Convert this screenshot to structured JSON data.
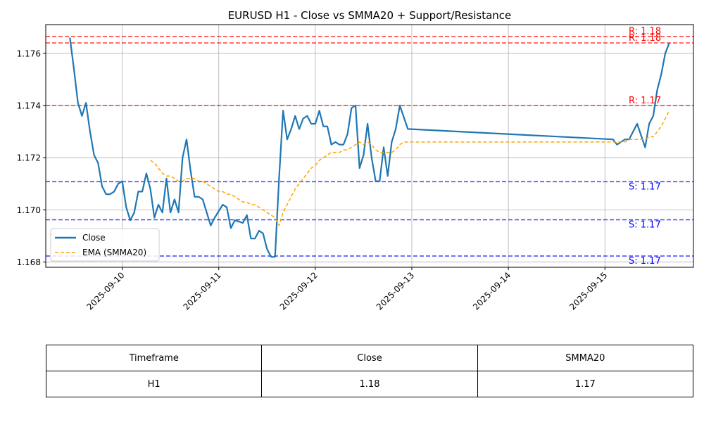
{
  "chart_data": {
    "type": "line",
    "title": "EURUSD H1 - Close vs SMMA20 + Support/Resistance",
    "xlabel": "",
    "ylabel": "",
    "x_range": [
      "2025-09-09 05:00",
      "2025-09-15 22:00"
    ],
    "ylim": [
      1.1678,
      1.1771
    ],
    "x_ticks": [
      "2025-09-10",
      "2025-09-11",
      "2025-09-12",
      "2025-09-13",
      "2025-09-14",
      "2025-09-15"
    ],
    "y_ticks": [
      "1.168",
      "1.170",
      "1.172",
      "1.174",
      "1.176"
    ],
    "grid": true,
    "legend_position": "lower-left",
    "colors": {
      "close": "#1f77b4",
      "smma": "#ffa500",
      "resistance": "#ff0000",
      "support": "#0000ff"
    },
    "series": [
      {
        "name": "Close",
        "style": "solid",
        "points": [
          [
            "2025-09-09 11:00",
            1.1766
          ],
          [
            "2025-09-09 12:00",
            1.1754
          ],
          [
            "2025-09-09 13:00",
            1.1741
          ],
          [
            "2025-09-09 14:00",
            1.1736
          ],
          [
            "2025-09-09 15:00",
            1.1741
          ],
          [
            "2025-09-09 16:00",
            1.173
          ],
          [
            "2025-09-09 17:00",
            1.1721
          ],
          [
            "2025-09-09 18:00",
            1.1718
          ],
          [
            "2025-09-09 19:00",
            1.1709
          ],
          [
            "2025-09-09 20:00",
            1.1706
          ],
          [
            "2025-09-09 21:00",
            1.1706
          ],
          [
            "2025-09-09 22:00",
            1.1707
          ],
          [
            "2025-09-09 23:00",
            1.171
          ],
          [
            "2025-09-10 00:00",
            1.1711
          ],
          [
            "2025-09-10 01:00",
            1.1701
          ],
          [
            "2025-09-10 02:00",
            1.1696
          ],
          [
            "2025-09-10 03:00",
            1.1699
          ],
          [
            "2025-09-10 04:00",
            1.1707
          ],
          [
            "2025-09-10 05:00",
            1.1707
          ],
          [
            "2025-09-10 06:00",
            1.1714
          ],
          [
            "2025-09-10 07:00",
            1.1708
          ],
          [
            "2025-09-10 08:00",
            1.1697
          ],
          [
            "2025-09-10 09:00",
            1.1702
          ],
          [
            "2025-09-10 10:00",
            1.1699
          ],
          [
            "2025-09-10 11:00",
            1.1712
          ],
          [
            "2025-09-10 12:00",
            1.1699
          ],
          [
            "2025-09-10 13:00",
            1.1704
          ],
          [
            "2025-09-10 14:00",
            1.1699
          ],
          [
            "2025-09-10 15:00",
            1.172
          ],
          [
            "2025-09-10 16:00",
            1.1727
          ],
          [
            "2025-09-10 17:00",
            1.1715
          ],
          [
            "2025-09-10 18:00",
            1.1705
          ],
          [
            "2025-09-10 19:00",
            1.1705
          ],
          [
            "2025-09-10 20:00",
            1.1704
          ],
          [
            "2025-09-10 21:00",
            1.1699
          ],
          [
            "2025-09-10 22:00",
            1.1694
          ],
          [
            "2025-09-10 23:00",
            1.1697
          ],
          [
            "2025-09-11 01:00",
            1.1702
          ],
          [
            "2025-09-11 02:00",
            1.1701
          ],
          [
            "2025-09-11 03:00",
            1.1693
          ],
          [
            "2025-09-11 04:00",
            1.1696
          ],
          [
            "2025-09-11 06:00",
            1.1695
          ],
          [
            "2025-09-11 07:00",
            1.1698
          ],
          [
            "2025-09-11 08:00",
            1.1689
          ],
          [
            "2025-09-11 09:00",
            1.1689
          ],
          [
            "2025-09-11 10:00",
            1.1692
          ],
          [
            "2025-09-11 11:00",
            1.1691
          ],
          [
            "2025-09-11 12:00",
            1.1685
          ],
          [
            "2025-09-11 13:00",
            1.1682
          ],
          [
            "2025-09-11 14:00",
            1.1682
          ],
          [
            "2025-09-11 15:00",
            1.1712
          ],
          [
            "2025-09-11 16:00",
            1.1738
          ],
          [
            "2025-09-11 17:00",
            1.1727
          ],
          [
            "2025-09-11 18:00",
            1.1731
          ],
          [
            "2025-09-11 19:00",
            1.1736
          ],
          [
            "2025-09-11 20:00",
            1.1731
          ],
          [
            "2025-09-11 21:00",
            1.1735
          ],
          [
            "2025-09-11 22:00",
            1.1736
          ],
          [
            "2025-09-11 23:00",
            1.1733
          ],
          [
            "2025-09-12 00:00",
            1.1733
          ],
          [
            "2025-09-12 01:00",
            1.1738
          ],
          [
            "2025-09-12 02:00",
            1.1732
          ],
          [
            "2025-09-12 03:00",
            1.1732
          ],
          [
            "2025-09-12 04:00",
            1.1725
          ],
          [
            "2025-09-12 05:00",
            1.1726
          ],
          [
            "2025-09-12 06:00",
            1.1725
          ],
          [
            "2025-09-12 07:00",
            1.1725
          ],
          [
            "2025-09-12 08:00",
            1.1729
          ],
          [
            "2025-09-12 09:00",
            1.1739
          ],
          [
            "2025-09-12 10:00",
            1.174
          ],
          [
            "2025-09-12 11:00",
            1.1716
          ],
          [
            "2025-09-12 12:00",
            1.1721
          ],
          [
            "2025-09-12 13:00",
            1.1733
          ],
          [
            "2025-09-12 14:00",
            1.172
          ],
          [
            "2025-09-12 15:00",
            1.1711
          ],
          [
            "2025-09-12 16:00",
            1.1711
          ],
          [
            "2025-09-12 17:00",
            1.1724
          ],
          [
            "2025-09-12 18:00",
            1.1713
          ],
          [
            "2025-09-12 19:00",
            1.1726
          ],
          [
            "2025-09-12 20:00",
            1.1731
          ],
          [
            "2025-09-12 21:00",
            1.174
          ],
          [
            "2025-09-12 23:00",
            1.1731
          ],
          [
            "2025-09-15 02:00",
            1.1727
          ],
          [
            "2025-09-15 03:00",
            1.1725
          ],
          [
            "2025-09-15 04:00",
            1.1726
          ],
          [
            "2025-09-15 05:00",
            1.1727
          ],
          [
            "2025-09-15 06:00",
            1.1727
          ],
          [
            "2025-09-15 08:00",
            1.1733
          ],
          [
            "2025-09-15 10:00",
            1.1724
          ],
          [
            "2025-09-15 11:00",
            1.1733
          ],
          [
            "2025-09-15 12:00",
            1.1736
          ],
          [
            "2025-09-15 13:00",
            1.1746
          ],
          [
            "2025-09-15 14:00",
            1.1752
          ],
          [
            "2025-09-15 15:00",
            1.176
          ],
          [
            "2025-09-15 16:00",
            1.1764
          ]
        ]
      },
      {
        "name": "EMA (SMMA20)",
        "style": "dashed",
        "points": [
          [
            "2025-09-10 07:00",
            1.1719
          ],
          [
            "2025-09-10 08:00",
            1.1718
          ],
          [
            "2025-09-10 09:00",
            1.1716
          ],
          [
            "2025-09-10 10:00",
            1.1714
          ],
          [
            "2025-09-10 11:00",
            1.1713
          ],
          [
            "2025-09-10 12:00",
            1.1713
          ],
          [
            "2025-09-10 13:00",
            1.1712
          ],
          [
            "2025-09-10 14:00",
            1.1711
          ],
          [
            "2025-09-10 15:00",
            1.1711
          ],
          [
            "2025-09-10 16:00",
            1.1712
          ],
          [
            "2025-09-10 17:00",
            1.1712
          ],
          [
            "2025-09-10 18:00",
            1.1712
          ],
          [
            "2025-09-10 19:00",
            1.1711
          ],
          [
            "2025-09-10 20:00",
            1.1711
          ],
          [
            "2025-09-10 21:00",
            1.171
          ],
          [
            "2025-09-10 22:00",
            1.1709
          ],
          [
            "2025-09-10 23:00",
            1.1708
          ],
          [
            "2025-09-11 00:00",
            1.1707
          ],
          [
            "2025-09-11 01:00",
            1.1707
          ],
          [
            "2025-09-11 02:00",
            1.1706
          ],
          [
            "2025-09-11 03:00",
            1.1706
          ],
          [
            "2025-09-11 04:00",
            1.1705
          ],
          [
            "2025-09-11 05:00",
            1.1704
          ],
          [
            "2025-09-11 06:00",
            1.1703
          ],
          [
            "2025-09-11 07:00",
            1.1703
          ],
          [
            "2025-09-11 08:00",
            1.1702
          ],
          [
            "2025-09-11 09:00",
            1.1702
          ],
          [
            "2025-09-11 10:00",
            1.1701
          ],
          [
            "2025-09-11 11:00",
            1.17
          ],
          [
            "2025-09-11 12:00",
            1.1699
          ],
          [
            "2025-09-11 13:00",
            1.1698
          ],
          [
            "2025-09-11 14:00",
            1.1697
          ],
          [
            "2025-09-11 15:00",
            1.1694
          ],
          [
            "2025-09-11 16:00",
            1.1699
          ],
          [
            "2025-09-11 17:00",
            1.1702
          ],
          [
            "2025-09-11 18:00",
            1.1705
          ],
          [
            "2025-09-11 19:00",
            1.1708
          ],
          [
            "2025-09-11 20:00",
            1.171
          ],
          [
            "2025-09-11 21:00",
            1.1712
          ],
          [
            "2025-09-11 22:00",
            1.1714
          ],
          [
            "2025-09-11 23:00",
            1.1716
          ],
          [
            "2025-09-12 00:00",
            1.1717
          ],
          [
            "2025-09-12 01:00",
            1.1719
          ],
          [
            "2025-09-12 02:00",
            1.172
          ],
          [
            "2025-09-12 03:00",
            1.1721
          ],
          [
            "2025-09-12 04:00",
            1.1722
          ],
          [
            "2025-09-12 05:00",
            1.1722
          ],
          [
            "2025-09-12 06:00",
            1.1722
          ],
          [
            "2025-09-12 07:00",
            1.1723
          ],
          [
            "2025-09-12 08:00",
            1.1723
          ],
          [
            "2025-09-12 09:00",
            1.1724
          ],
          [
            "2025-09-12 10:00",
            1.1725
          ],
          [
            "2025-09-12 11:00",
            1.1726
          ],
          [
            "2025-09-12 12:00",
            1.1725
          ],
          [
            "2025-09-12 13:00",
            1.1726
          ],
          [
            "2025-09-12 14:00",
            1.1725
          ],
          [
            "2025-09-12 15:00",
            1.1723
          ],
          [
            "2025-09-12 16:00",
            1.1722
          ],
          [
            "2025-09-12 17:00",
            1.1722
          ],
          [
            "2025-09-12 18:00",
            1.1722
          ],
          [
            "2025-09-12 19:00",
            1.1722
          ],
          [
            "2025-09-12 20:00",
            1.1723
          ],
          [
            "2025-09-12 21:00",
            1.1725
          ],
          [
            "2025-09-12 22:00",
            1.1726
          ],
          [
            "2025-09-12 23:00",
            1.1726
          ],
          [
            "2025-09-15 04:00",
            1.1726
          ],
          [
            "2025-09-15 05:00",
            1.1726
          ],
          [
            "2025-09-15 06:00",
            1.1727
          ],
          [
            "2025-09-15 08:00",
            1.1727
          ],
          [
            "2025-09-15 10:00",
            1.1727
          ],
          [
            "2025-09-15 11:00",
            1.1728
          ],
          [
            "2025-09-15 12:00",
            1.1728
          ],
          [
            "2025-09-15 13:00",
            1.173
          ],
          [
            "2025-09-15 14:00",
            1.1732
          ],
          [
            "2025-09-15 15:00",
            1.1735
          ],
          [
            "2025-09-15 16:00",
            1.1738
          ]
        ]
      }
    ],
    "hlines": [
      {
        "kind": "resistance",
        "value": 1.17665,
        "label": "R: 1.18"
      },
      {
        "kind": "resistance",
        "value": 1.1764,
        "label": "R: 1.18"
      },
      {
        "kind": "resistance",
        "value": 1.174,
        "label": "R: 1.17"
      },
      {
        "kind": "support",
        "value": 1.17108,
        "label": "S: 1.17"
      },
      {
        "kind": "support",
        "value": 1.16962,
        "label": "S: 1.17"
      },
      {
        "kind": "support",
        "value": 1.16823,
        "label": "S: 1.17"
      }
    ]
  },
  "table": {
    "headers": [
      "Timeframe",
      "Close",
      "SMMA20"
    ],
    "row": [
      "H1",
      "1.18",
      "1.17"
    ]
  }
}
